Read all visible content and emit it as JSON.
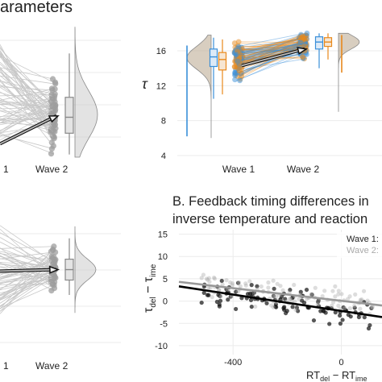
{
  "figure": {
    "header_fragment": "arameters",
    "panel_b_title_line1": "B. Feedback timing differences in",
    "panel_b_title_line2": "inverse temperature and reaction"
  },
  "colors": {
    "gray_points": "#9e9e9e",
    "gray_dist": "#cccccc",
    "blue": "#3a8fd9",
    "orange": "#e8891c",
    "dark_points": "#333333"
  },
  "chart_data": [
    {
      "id": "top-left",
      "type": "scatter",
      "description_of_series": "paired raincloud: points per wave with connecting lines, boxplot, half-violin",
      "categories": [
        "1",
        "Wave 2"
      ],
      "ylim": [
        0,
        1
      ],
      "wave2_box": {
        "q1": 0.18,
        "median": 0.3,
        "q3": 0.45,
        "min": 0.02,
        "max": 0.78
      },
      "mean_arrow": {
        "from": 0.1,
        "to": 0.31
      }
    },
    {
      "id": "top-right",
      "type": "scatter",
      "ylabel": "τ",
      "xlabel": "",
      "categories": [
        "Wave 1",
        "Wave 2"
      ],
      "ylim": [
        4,
        18
      ],
      "yticks": [
        4,
        8,
        12,
        16
      ],
      "series": [
        {
          "color": "#3a8fd9",
          "wave1_box": {
            "min": 10.5,
            "q1": 14.2,
            "median": 15.3,
            "q3": 16.2,
            "max": 17.5
          },
          "wave2_box": {
            "min": 14.0,
            "q1": 16.2,
            "median": 17.0,
            "q3": 17.6,
            "max": 18.0
          }
        },
        {
          "color": "#e8891c",
          "wave1_box": {
            "min": 11.0,
            "q1": 13.8,
            "median": 15.0,
            "q3": 15.8,
            "max": 17.3
          },
          "wave2_box": {
            "min": 15.0,
            "q1": 16.5,
            "median": 17.0,
            "q3": 17.5,
            "max": 18.0
          }
        }
      ],
      "mean_arrow": {
        "from": 14.3,
        "to": 16.2
      }
    },
    {
      "id": "bottom-left",
      "type": "scatter",
      "categories": [
        "1",
        "Wave 2"
      ],
      "ylim": [
        0,
        1
      ],
      "wave2_box": {
        "q1": 0.5,
        "median": 0.57,
        "q3": 0.64,
        "min": 0.4,
        "max": 0.78
      },
      "mean_arrow": {
        "from": 0.56,
        "to": 0.57
      }
    },
    {
      "id": "bottom-right",
      "type": "scatter",
      "xlabel": "RT_del − RT_ime",
      "ylabel": "τ_del − τ_ime",
      "xlim": [
        -600,
        150
      ],
      "ylim": [
        -12,
        16
      ],
      "xticks": [
        -400,
        0
      ],
      "yticks": [
        -10,
        -5,
        0,
        5,
        10,
        15
      ],
      "series": [
        {
          "name": "Wave 1:",
          "color": "#111111"
        },
        {
          "name": "Wave 2:",
          "color": "#aaaaaa"
        }
      ],
      "trend_lines": [
        {
          "series": "Wave 1:",
          "x": [
            -600,
            150
          ],
          "y": [
            3.3,
            -3.6
          ]
        },
        {
          "series": "Wave 2:",
          "x": [
            -600,
            150
          ],
          "y": [
            4.3,
            -1.0
          ]
        }
      ]
    }
  ]
}
